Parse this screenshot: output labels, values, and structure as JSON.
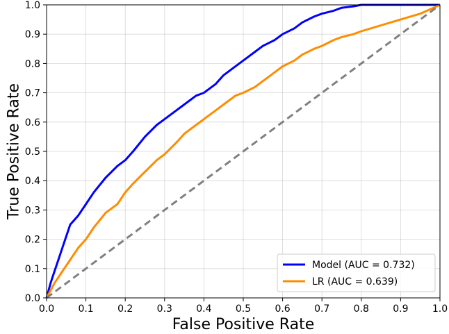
{
  "chart_data": {
    "type": "line",
    "title": "",
    "xlabel": "False Positive Rate",
    "ylabel": "True Positive Rate",
    "xlim": [
      0.0,
      1.0
    ],
    "ylim": [
      0.0,
      1.0
    ],
    "xticks": [
      "0.0",
      "0.1",
      "0.2",
      "0.3",
      "0.4",
      "0.5",
      "0.6",
      "0.7",
      "0.8",
      "0.9",
      "1.0"
    ],
    "yticks": [
      "0.0",
      "0.1",
      "0.2",
      "0.3",
      "0.4",
      "0.5",
      "0.6",
      "0.7",
      "0.8",
      "0.9",
      "1.0"
    ],
    "grid": true,
    "legend_position": "bottom-right",
    "series": [
      {
        "name": "Model (AUC = 0.732)",
        "color": "#0000ff",
        "x": [
          0.0,
          0.01,
          0.02,
          0.03,
          0.04,
          0.05,
          0.06,
          0.08,
          0.1,
          0.12,
          0.15,
          0.18,
          0.2,
          0.22,
          0.25,
          0.28,
          0.3,
          0.33,
          0.35,
          0.38,
          0.4,
          0.43,
          0.45,
          0.48,
          0.5,
          0.53,
          0.55,
          0.58,
          0.6,
          0.63,
          0.65,
          0.68,
          0.7,
          0.73,
          0.75,
          0.78,
          0.8,
          0.85,
          0.9,
          0.95,
          1.0
        ],
        "y": [
          0.0,
          0.05,
          0.09,
          0.13,
          0.17,
          0.21,
          0.25,
          0.28,
          0.32,
          0.36,
          0.41,
          0.45,
          0.47,
          0.5,
          0.55,
          0.59,
          0.61,
          0.64,
          0.66,
          0.69,
          0.7,
          0.73,
          0.76,
          0.79,
          0.81,
          0.84,
          0.86,
          0.88,
          0.9,
          0.92,
          0.94,
          0.96,
          0.97,
          0.98,
          0.99,
          0.995,
          1.0,
          1.0,
          1.0,
          1.0,
          1.0
        ]
      },
      {
        "name": "LR (AUC = 0.639)",
        "color": "#ff8c00",
        "x": [
          0.0,
          0.02,
          0.04,
          0.06,
          0.08,
          0.1,
          0.12,
          0.15,
          0.18,
          0.2,
          0.22,
          0.25,
          0.28,
          0.3,
          0.33,
          0.35,
          0.38,
          0.4,
          0.43,
          0.45,
          0.48,
          0.5,
          0.53,
          0.55,
          0.58,
          0.6,
          0.63,
          0.65,
          0.68,
          0.7,
          0.73,
          0.75,
          0.78,
          0.8,
          0.85,
          0.9,
          0.95,
          1.0
        ],
        "y": [
          0.0,
          0.05,
          0.09,
          0.13,
          0.17,
          0.2,
          0.24,
          0.29,
          0.32,
          0.36,
          0.39,
          0.43,
          0.47,
          0.49,
          0.53,
          0.56,
          0.59,
          0.61,
          0.64,
          0.66,
          0.69,
          0.7,
          0.72,
          0.74,
          0.77,
          0.79,
          0.81,
          0.83,
          0.85,
          0.86,
          0.88,
          0.89,
          0.9,
          0.91,
          0.93,
          0.95,
          0.97,
          1.0
        ]
      },
      {
        "name": "",
        "color": "#808080",
        "dashed": true,
        "x": [
          0.0,
          1.0
        ],
        "y": [
          0.0,
          1.0
        ]
      }
    ]
  }
}
